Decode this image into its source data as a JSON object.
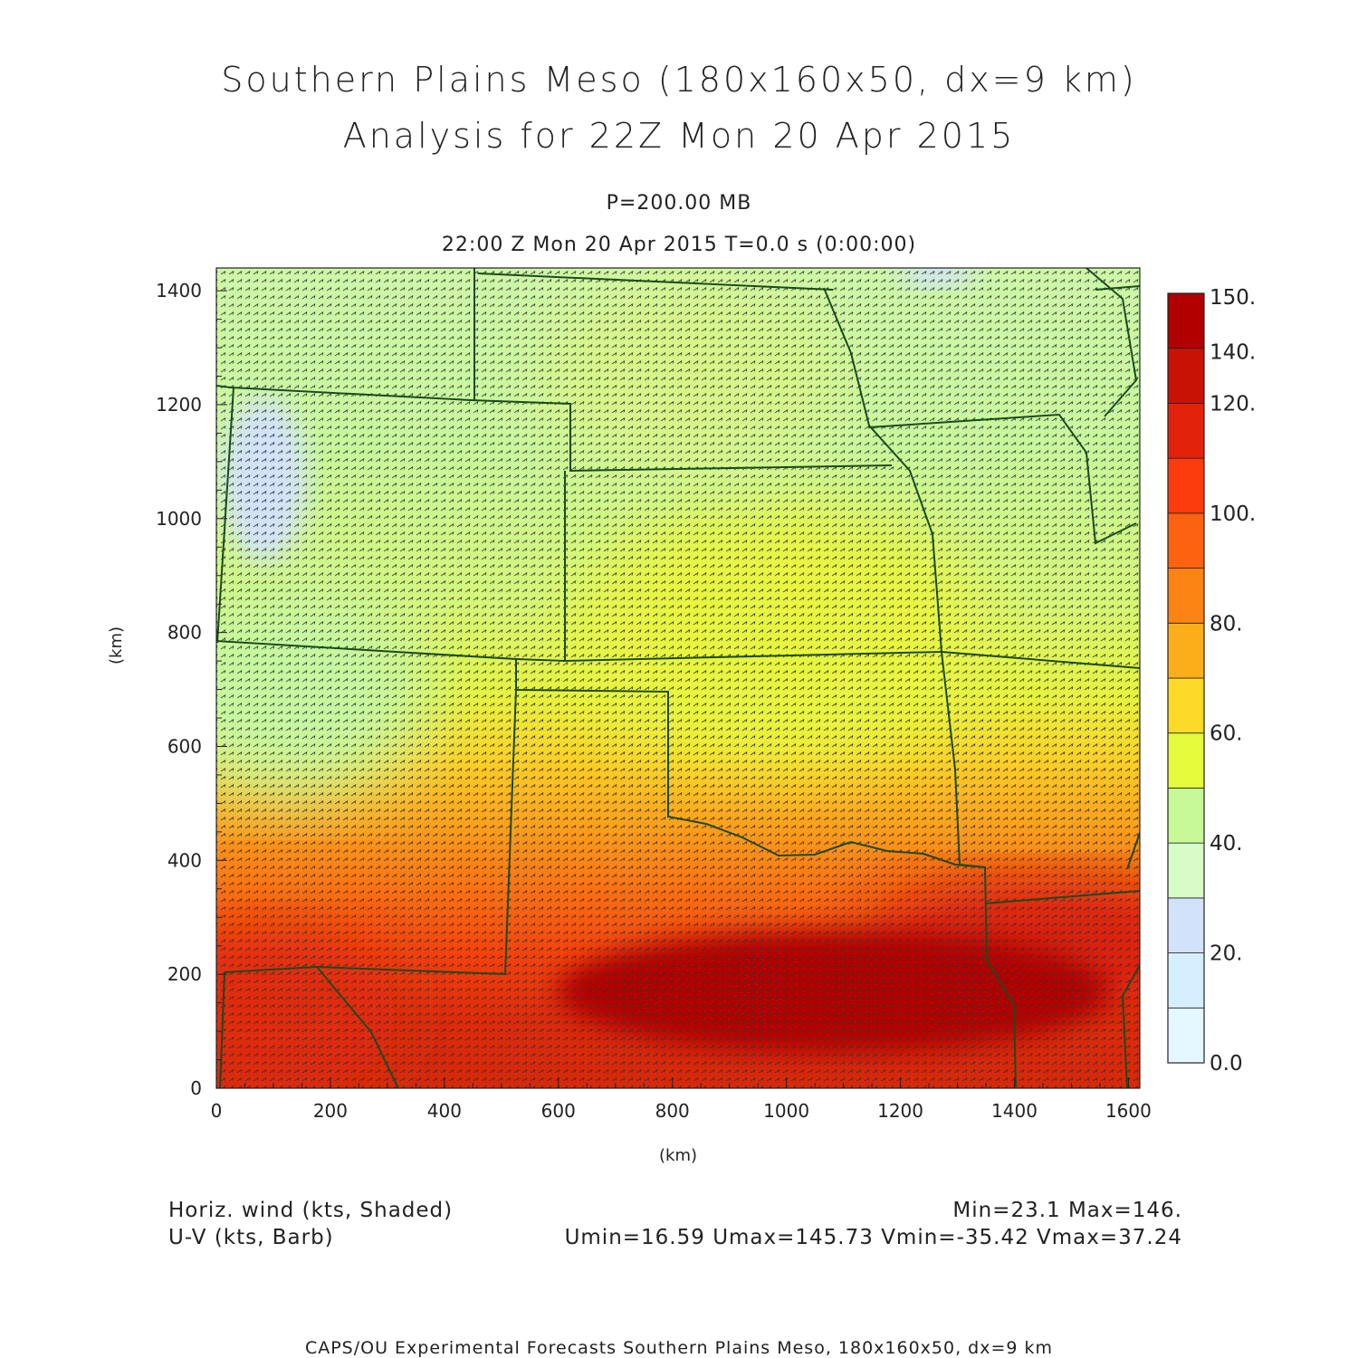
{
  "header": {
    "title_line1": "Southern Plains Meso (180x160x50, dx=9 km)",
    "title_line2": "Analysis for 22Z Mon 20 Apr 2015",
    "level": "P=200.00 MB",
    "time": "22:00 Z Mon 20 Apr 2015    T=0.0 s (0:00:00)"
  },
  "axes": {
    "x_unit": "(km)",
    "y_unit": "(km)",
    "x_ticks": [
      "0",
      "200",
      "400",
      "600",
      "800",
      "1000",
      "1200",
      "1400",
      "1600"
    ],
    "y_ticks": [
      "0",
      "200",
      "400",
      "600",
      "800",
      "1000",
      "1200",
      "1400"
    ],
    "x_range": [
      0,
      1620
    ],
    "y_range": [
      0,
      1440
    ]
  },
  "colorbar": {
    "labels": [
      "0.0",
      "20.",
      "40.",
      "60.",
      "80.",
      "100.",
      "120.",
      "140.",
      "150."
    ],
    "colors": [
      "#e6f8ff",
      "#d6efff",
      "#d2e2fa",
      "#d8fcc8",
      "#c6f896",
      "#e4fa3a",
      "#fcda28",
      "#fcae1a",
      "#fc8412",
      "#fc6210",
      "#fc3c0c",
      "#e2220a",
      "#c81206",
      "#b00000"
    ]
  },
  "footer": {
    "left_line1": "Horiz. wind (kts, Shaded)",
    "left_line2": "U-V (kts, Barb)",
    "right_line1": "Min=23.1 Max=146.",
    "right_line2": "Umin=16.59 Umax=145.73 Vmin=-35.42 Vmax=37.24",
    "credit": "CAPS/OU Experimental Forecasts  Southern Plains Meso, 180x160x50, dx=9 km"
  }
}
